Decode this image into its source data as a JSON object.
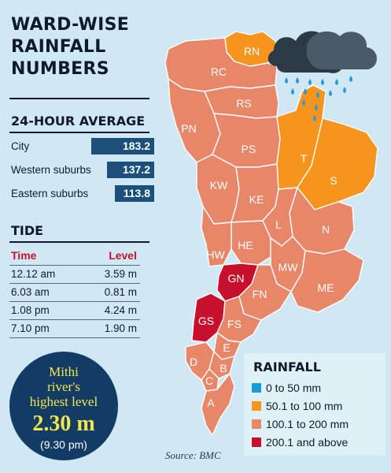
{
  "title_lines": [
    "WARD-WISE",
    "RAINFALL",
    "NUMBERS"
  ],
  "average": {
    "heading": "24-HOUR AVERAGE",
    "rows": [
      {
        "label": "City",
        "value": "183.2",
        "num": 183.2
      },
      {
        "label": "Western suburbs",
        "value": "137.2",
        "num": 137.2
      },
      {
        "label": "Eastern suburbs",
        "value": "113.8",
        "num": 113.8
      }
    ]
  },
  "tide": {
    "heading": "TIDE",
    "col_time": "Time",
    "col_level": "Level",
    "rows": [
      {
        "time": "12.12 am",
        "level": "3.59 m"
      },
      {
        "time": "6.03 am",
        "level": "0.81 m"
      },
      {
        "time": "1.08 pm",
        "level": "4.24 m"
      },
      {
        "time": "7.10 pm",
        "level": "1.90 m"
      }
    ]
  },
  "mithi": {
    "line1": "Mithi",
    "line2": "river's",
    "line3": "highest level",
    "value": "2.30 m",
    "time": "(9.30 pm)"
  },
  "legend": {
    "title": "RAINFALL",
    "items": [
      {
        "label": "0 to 50 mm",
        "color": "#1a9ad6"
      },
      {
        "label": "50.1 to 100 mm",
        "color": "#f7941d"
      },
      {
        "label": "100.1 to 200 mm",
        "color": "#e8866a"
      },
      {
        "label": "200.1 and above",
        "color": "#c8102e"
      }
    ]
  },
  "source": "Source: BMC",
  "wards": [
    {
      "code": "RN",
      "category": "50.1 to 100 mm"
    },
    {
      "code": "RC",
      "category": "100.1 to 200 mm"
    },
    {
      "code": "RS",
      "category": "100.1 to 200 mm"
    },
    {
      "code": "PN",
      "category": "100.1 to 200 mm"
    },
    {
      "code": "PS",
      "category": "100.1 to 200 mm"
    },
    {
      "code": "T",
      "category": "50.1 to 100 mm"
    },
    {
      "code": "S",
      "category": "50.1 to 100 mm"
    },
    {
      "code": "KW",
      "category": "100.1 to 200 mm"
    },
    {
      "code": "KE",
      "category": "100.1 to 200 mm"
    },
    {
      "code": "N",
      "category": "100.1 to 200 mm"
    },
    {
      "code": "L",
      "category": "100.1 to 200 mm"
    },
    {
      "code": "HE",
      "category": "100.1 to 200 mm"
    },
    {
      "code": "HW",
      "category": "100.1 to 200 mm"
    },
    {
      "code": "MW",
      "category": "100.1 to 200 mm"
    },
    {
      "code": "ME",
      "category": "100.1 to 200 mm"
    },
    {
      "code": "GN",
      "category": "200.1 and above"
    },
    {
      "code": "FN",
      "category": "100.1 to 200 mm"
    },
    {
      "code": "GS",
      "category": "200.1 and above"
    },
    {
      "code": "FS",
      "category": "100.1 to 200 mm"
    },
    {
      "code": "E",
      "category": "100.1 to 200 mm"
    },
    {
      "code": "D",
      "category": "100.1 to 200 mm"
    },
    {
      "code": "B",
      "category": "100.1 to 200 mm"
    },
    {
      "code": "C",
      "category": "100.1 to 200 mm"
    },
    {
      "code": "A",
      "category": "100.1 to 200 mm"
    }
  ],
  "colors": {
    "background": "#cfe8f3",
    "ward_default": "#e8866a",
    "ward_orange": "#f7941d",
    "ward_red": "#c8102e",
    "value_bar": "#1c4f7a",
    "circle": "#123b66",
    "circle_text": "#f2e64a",
    "rain_drop": "#2b9ad9",
    "cloud": "#3c4a56"
  }
}
